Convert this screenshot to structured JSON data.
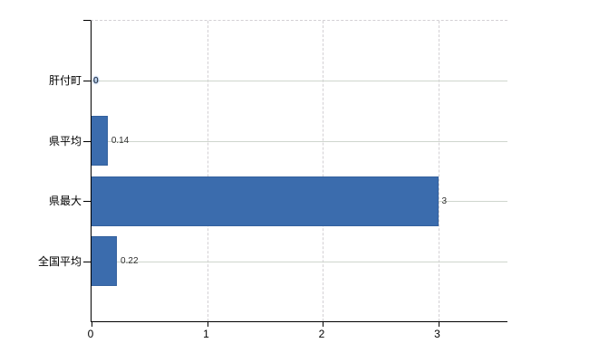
{
  "chart_data": {
    "type": "bar",
    "orientation": "horizontal",
    "title": "",
    "xlabel": "",
    "ylabel": "",
    "categories": [
      "肝付町",
      "県平均",
      "県最大",
      "全国平均"
    ],
    "values": [
      0,
      0.14,
      3,
      0.22
    ],
    "value_labels": [
      "0",
      "0.14",
      "3",
      "0.22"
    ],
    "xlim": [
      0,
      3.6
    ],
    "xticks": [
      0,
      1,
      2,
      3
    ],
    "xtick_labels": [
      "0",
      "1",
      "2",
      "3"
    ],
    "grid": true,
    "legend": false,
    "bar_color": "#3b6cad",
    "bar_border_color": "#34619e",
    "axis_color": "#000000",
    "gridline_color": "#cfd5cd",
    "dashed_gridline_color": "#d3d0d4",
    "value_label_color": "#303030"
  }
}
